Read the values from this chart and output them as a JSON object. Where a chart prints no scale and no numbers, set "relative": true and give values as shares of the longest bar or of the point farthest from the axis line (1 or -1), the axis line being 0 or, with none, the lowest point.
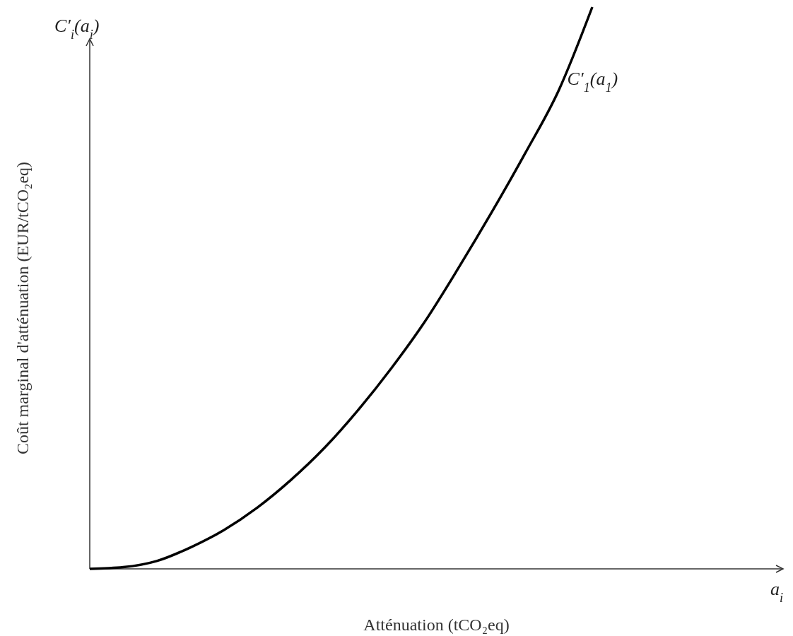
{
  "chart_data": {
    "type": "line",
    "relative": true,
    "xlabel": "Atténuation (tCO₂eq)",
    "ylabel": "Coût marginal d'atténuation (EUR/tCO₂eq)",
    "annotations": [
      "C′$_{i}$(a$_{i}$)",
      "a$_{i}$"
    ],
    "categories": [
      null,
      null,
      null,
      null,
      null,
      null,
      null,
      null,
      null,
      null,
      null,
      null,
      null,
      null,
      null,
      null,
      null,
      null,
      null,
      null,
      null
    ],
    "series": [
      {
        "name": "C′$_{1}$(a$_{1}$)",
        "color": "#000000",
        "values": [
          0,
          0.003,
          0.014,
          0.038,
          0.069,
          0.109,
          0.158,
          0.215,
          0.282,
          0.357,
          0.44,
          0.535,
          0.635,
          0.74,
          0.852,
          1,
          null,
          null,
          null,
          null,
          null
        ]
      }
    ],
    "marker": "none",
    "line_style": "solid"
  }
}
